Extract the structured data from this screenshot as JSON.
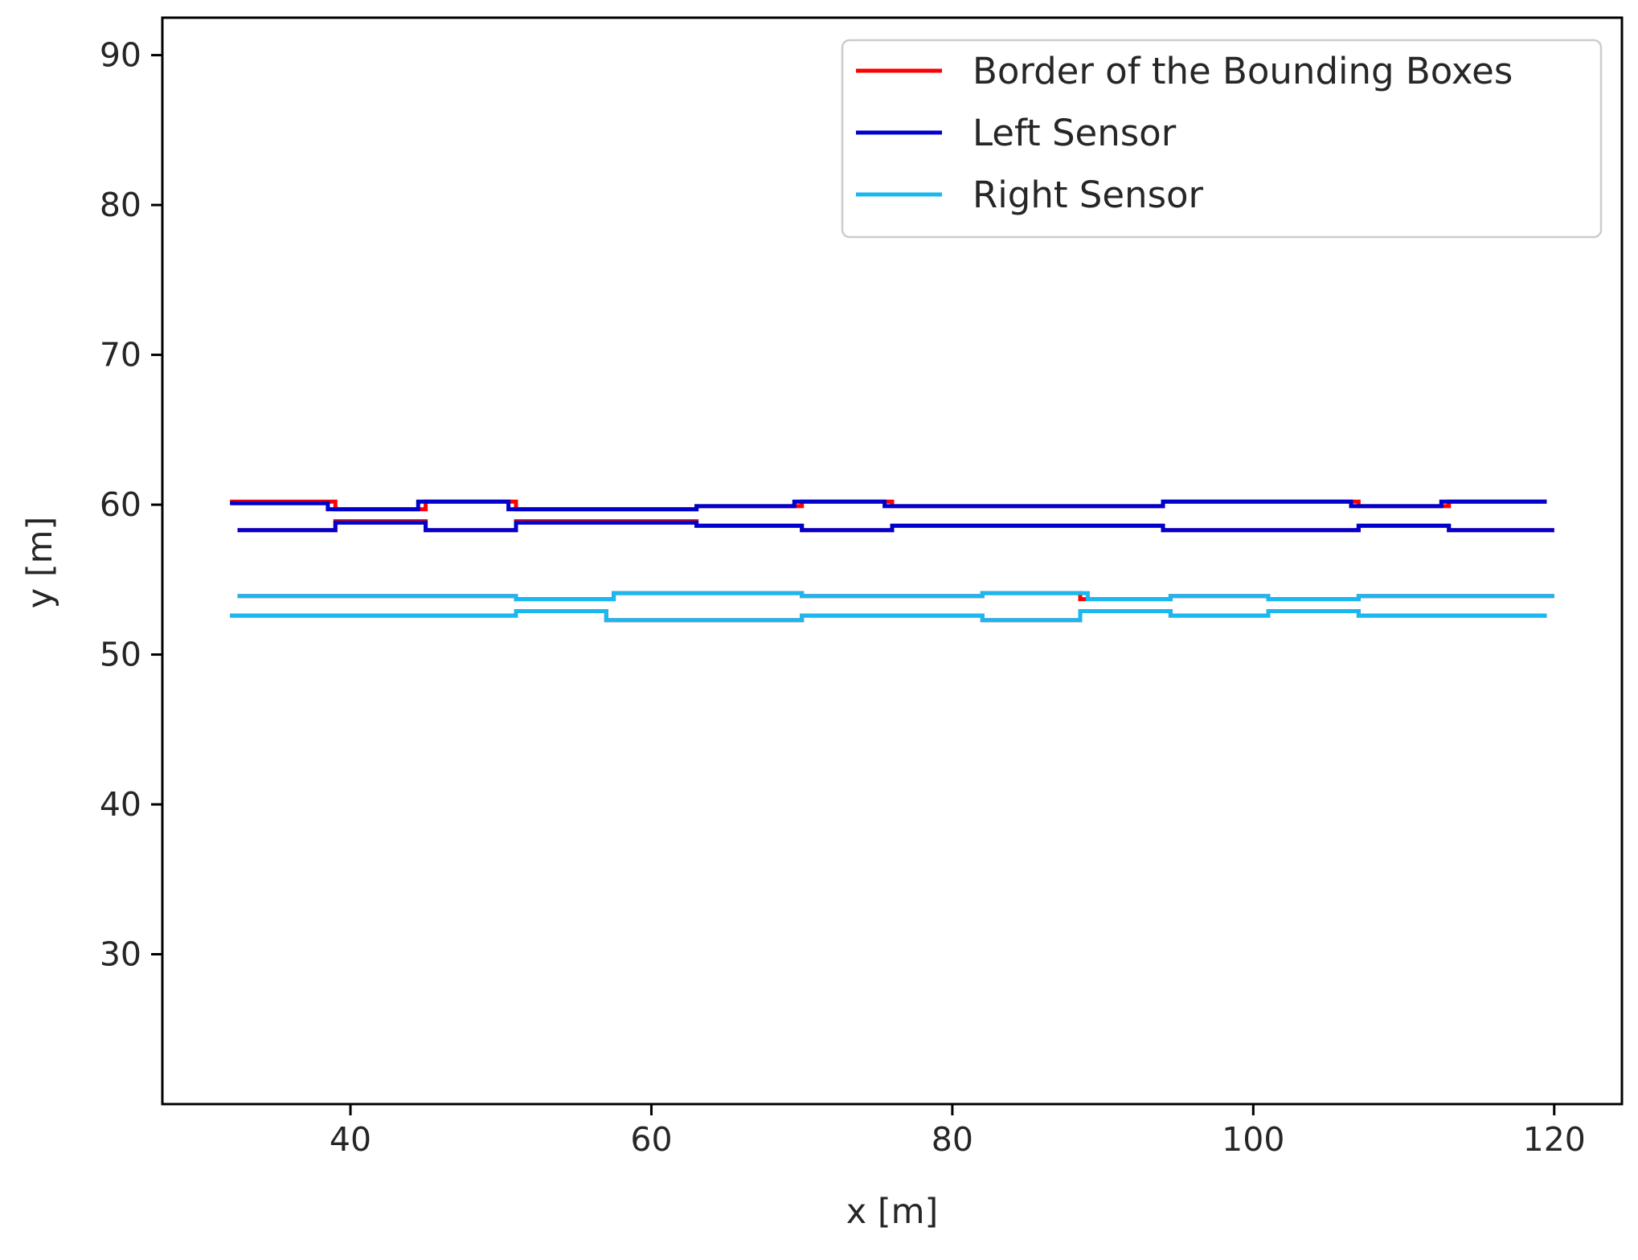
{
  "chart_data": {
    "type": "line",
    "xlabel": "x [m]",
    "ylabel": "y [m]",
    "xlim": [
      27.5,
      124.5
    ],
    "ylim": [
      20,
      92.5
    ],
    "xticks": [
      40,
      60,
      80,
      100,
      120
    ],
    "yticks": [
      30,
      40,
      50,
      60,
      70,
      80,
      90
    ],
    "grid": false,
    "legend_position": "top-right",
    "series": [
      {
        "name": "Border of the Bounding Boxes",
        "color": "#ff0000",
        "segments": [
          {
            "x": [
              32,
              39,
              39,
              45,
              45,
              51,
              51,
              63,
              63,
              70,
              70,
              76,
              76,
              94,
              94,
              107,
              107,
              113,
              113,
              119.5
            ],
            "y": [
              60.2,
              60.2,
              59.7,
              59.7,
              60.2,
              60.2,
              59.7,
              59.7,
              59.9,
              59.9,
              60.2,
              60.2,
              59.9,
              59.9,
              60.2,
              60.2,
              59.9,
              59.9,
              60.2,
              60.2
            ]
          },
          {
            "x": [
              32.5,
              39,
              39,
              45,
              45,
              51,
              51,
              63,
              63,
              70,
              70,
              76,
              76,
              94,
              94,
              107,
              107,
              113,
              113,
              120
            ],
            "y": [
              58.3,
              58.3,
              58.9,
              58.9,
              58.3,
              58.3,
              58.9,
              58.9,
              58.6,
              58.6,
              58.3,
              58.3,
              58.6,
              58.6,
              58.3,
              58.3,
              58.6,
              58.6,
              58.3,
              58.3
            ]
          },
          {
            "x": [
              32.5,
              51,
              51,
              57.5,
              57.5,
              70,
              70,
              82,
              82,
              88.5,
              88.5,
              94.5,
              94.5,
              101,
              101,
              107,
              107,
              120
            ],
            "y": [
              53.9,
              53.9,
              53.7,
              53.7,
              54.1,
              54.1,
              53.9,
              53.9,
              54.1,
              54.1,
              53.7,
              53.7,
              53.9,
              53.9,
              53.7,
              53.7,
              53.9,
              53.9
            ]
          },
          {
            "x": [
              32,
              51,
              51,
              57,
              57,
              70,
              70,
              82,
              82,
              88.5,
              88.5,
              94.5,
              94.5,
              101,
              101,
              107,
              107,
              119.5
            ],
            "y": [
              52.6,
              52.6,
              52.9,
              52.9,
              52.3,
              52.3,
              52.6,
              52.6,
              52.3,
              52.3,
              52.9,
              52.9,
              52.6,
              52.6,
              52.9,
              52.9,
              52.6,
              52.6
            ]
          }
        ]
      },
      {
        "name": "Left Sensor",
        "color": "#0000cc",
        "segments": [
          {
            "x": [
              32,
              38.5,
              38.5,
              44.5,
              44.5,
              50.5,
              50.5,
              63,
              63,
              69.5,
              69.5,
              75.5,
              75.5,
              94,
              94,
              106.5,
              106.5,
              112.5,
              112.5,
              119.5
            ],
            "y": [
              60.1,
              60.1,
              59.7,
              59.7,
              60.2,
              60.2,
              59.7,
              59.7,
              59.9,
              59.9,
              60.2,
              60.2,
              59.9,
              59.9,
              60.2,
              60.2,
              59.9,
              59.9,
              60.2,
              60.2
            ]
          },
          {
            "x": [
              32.5,
              39,
              39,
              45,
              45,
              51,
              51,
              63,
              63,
              70,
              70,
              76,
              76,
              94,
              94,
              107,
              107,
              113,
              113,
              120
            ],
            "y": [
              58.3,
              58.3,
              58.8,
              58.8,
              58.3,
              58.3,
              58.8,
              58.8,
              58.6,
              58.6,
              58.3,
              58.3,
              58.6,
              58.6,
              58.3,
              58.3,
              58.6,
              58.6,
              58.3,
              58.3
            ]
          }
        ]
      },
      {
        "name": "Right Sensor",
        "color": "#1ab8f0",
        "segments": [
          {
            "x": [
              32.5,
              51,
              51,
              57.5,
              57.5,
              70,
              70,
              82,
              82,
              89,
              89,
              94.5,
              94.5,
              101,
              101,
              107,
              107,
              120
            ],
            "y": [
              53.9,
              53.9,
              53.7,
              53.7,
              54.1,
              54.1,
              53.9,
              53.9,
              54.1,
              54.1,
              53.7,
              53.7,
              53.9,
              53.9,
              53.7,
              53.7,
              53.9,
              53.9
            ]
          },
          {
            "x": [
              32,
              51,
              51,
              57,
              57,
              70,
              70,
              82,
              82,
              88.5,
              88.5,
              94.5,
              94.5,
              101,
              101,
              107,
              107,
              119.5
            ],
            "y": [
              52.6,
              52.6,
              52.9,
              52.9,
              52.3,
              52.3,
              52.6,
              52.6,
              52.3,
              52.3,
              52.9,
              52.9,
              52.6,
              52.6,
              52.9,
              52.9,
              52.6,
              52.6
            ]
          }
        ]
      }
    ]
  }
}
